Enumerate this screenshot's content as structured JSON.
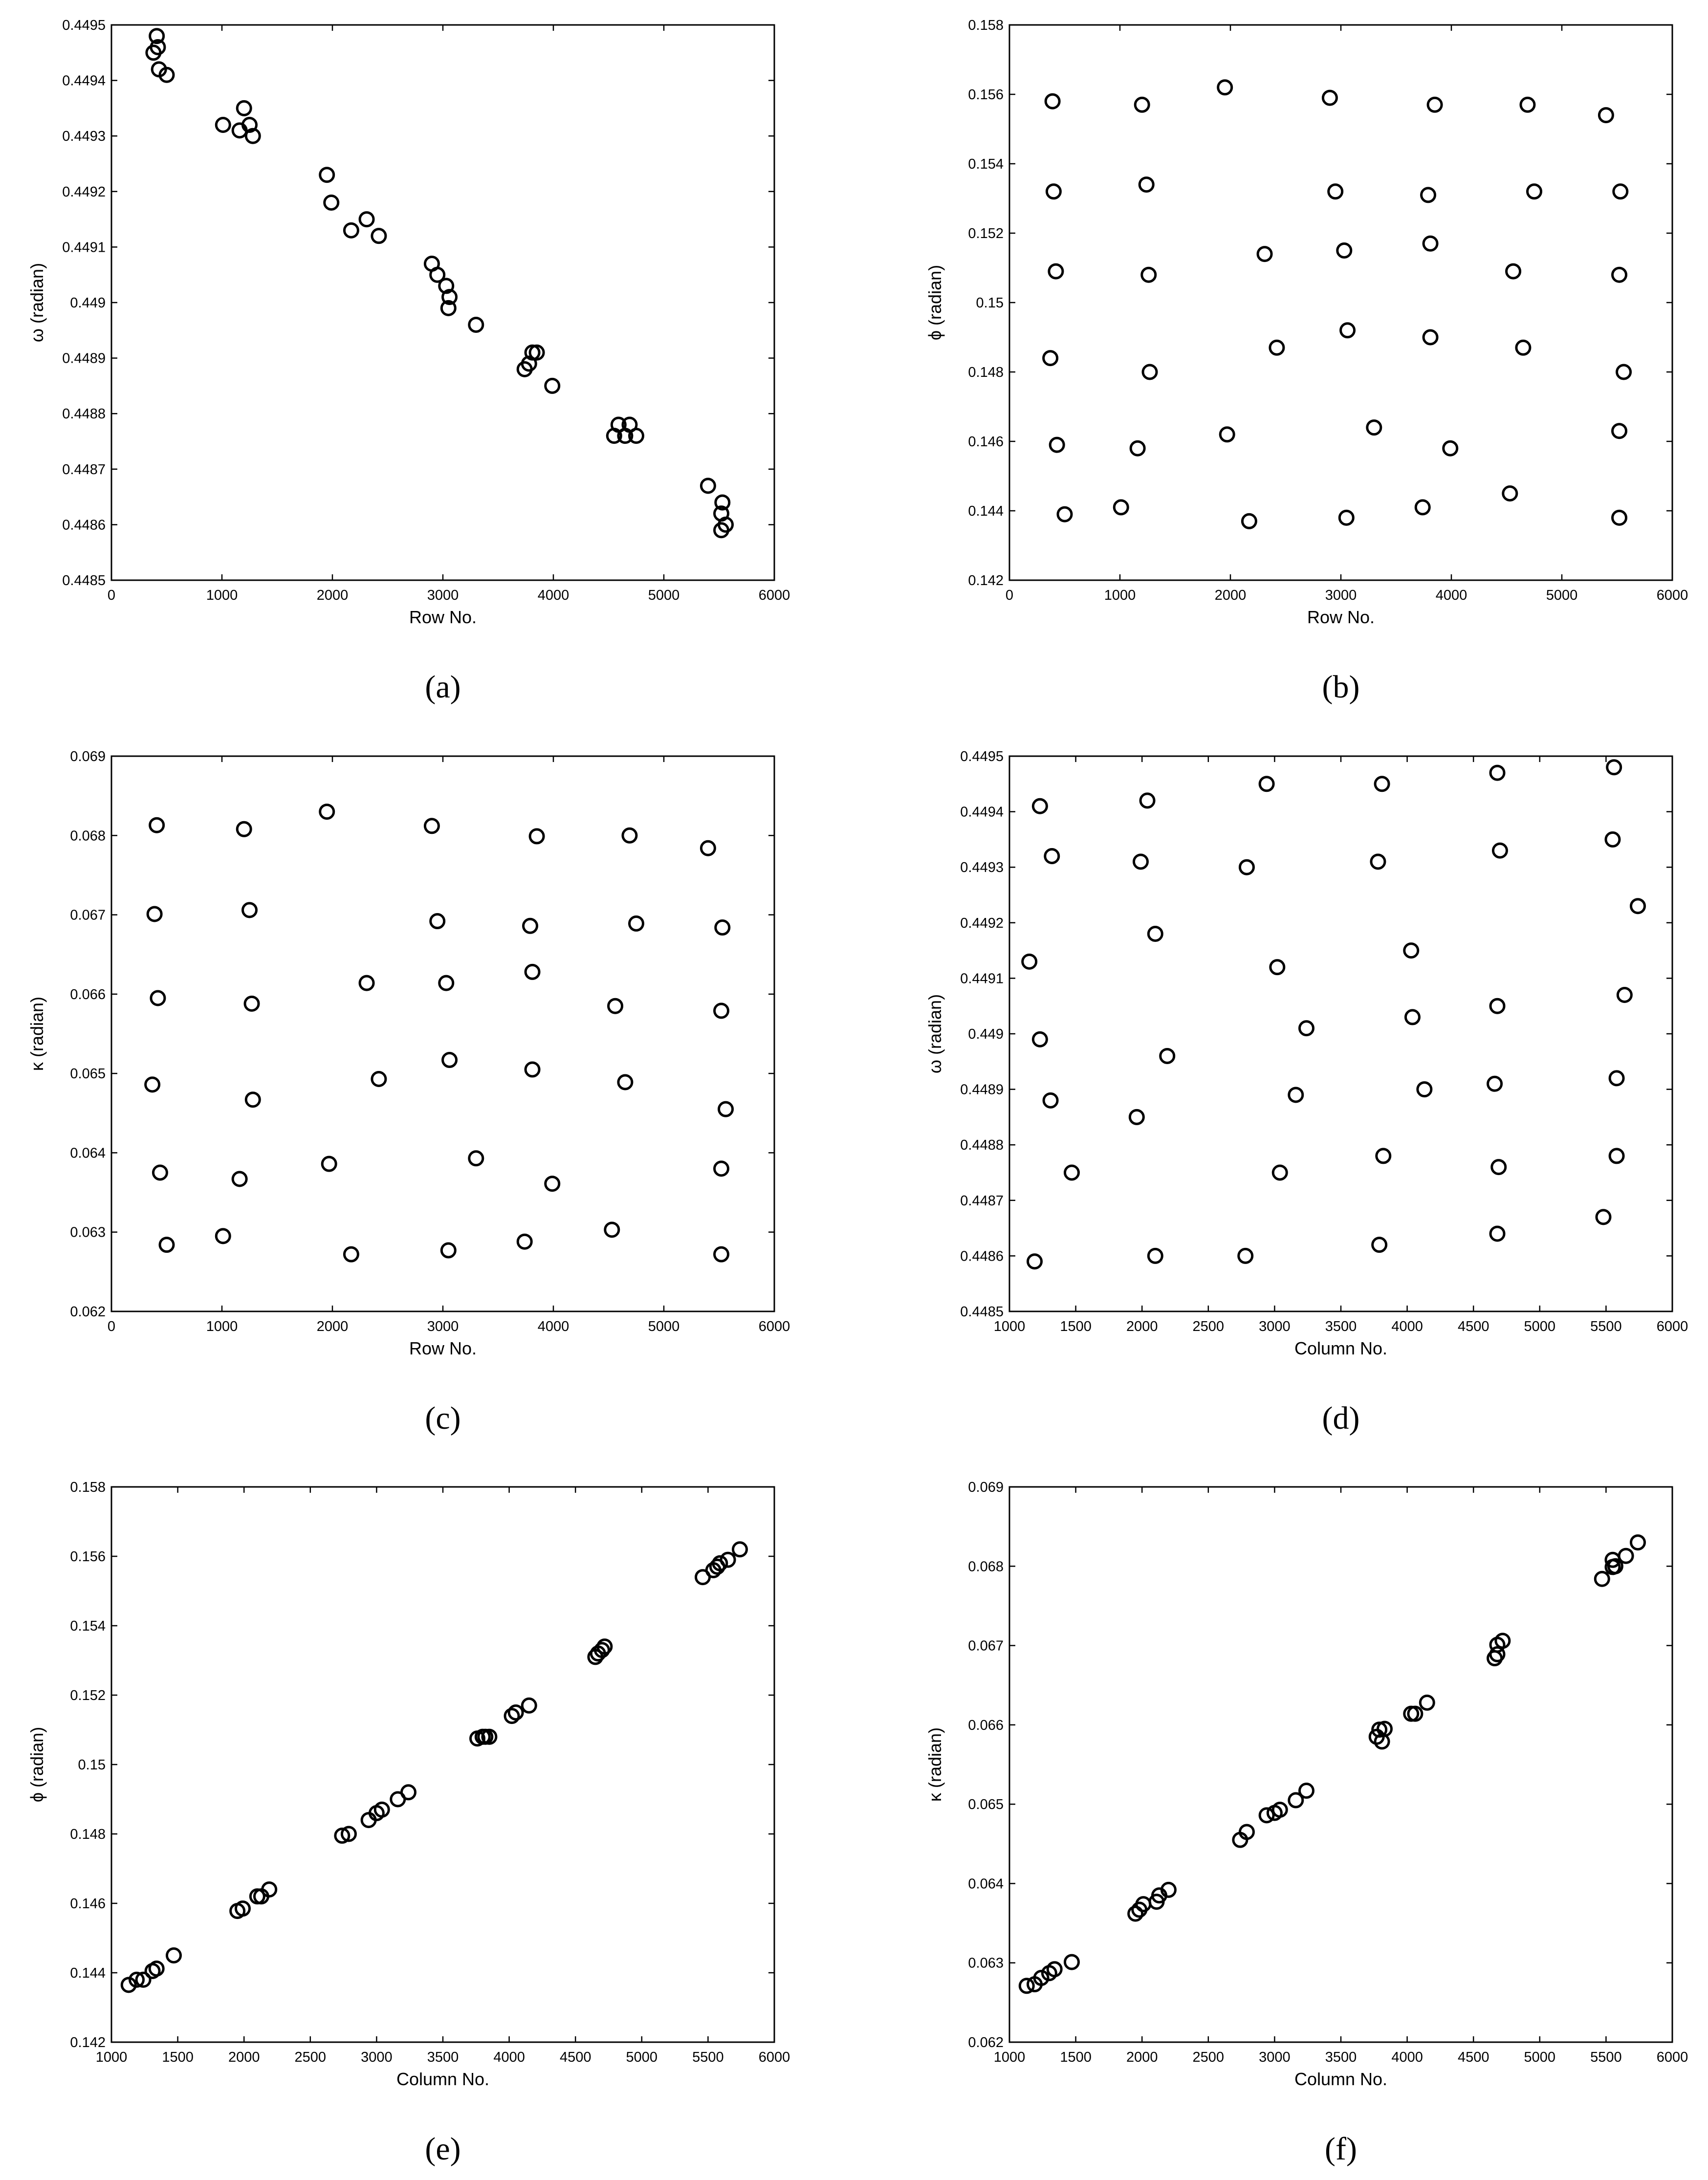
{
  "figure": {
    "marker_color": "#000000",
    "background": "#ffffff"
  },
  "chart_data": [
    {
      "id": "a",
      "type": "scatter",
      "caption": "(a)",
      "xlabel": "Row No.",
      "ylabel": "ω (radian)",
      "xlim": [
        0,
        6000
      ],
      "ylim": [
        0.4485,
        0.4495
      ],
      "xticks": [
        0,
        1000,
        2000,
        3000,
        4000,
        5000,
        6000
      ],
      "xtick_labels": [
        "0",
        "1000",
        "2000",
        "3000",
        "4000",
        "5000",
        "6000"
      ],
      "yticks": [
        0.4485,
        0.4486,
        0.4487,
        0.4488,
        0.4489,
        0.449,
        0.4491,
        0.4492,
        0.4493,
        0.4494,
        0.4495
      ],
      "ytick_labels": [
        "0.4485",
        "0.4486",
        "0.4487",
        "0.4488",
        "0.4489",
        "0.449",
        "0.4491",
        "0.4492",
        "0.4493",
        "0.4494",
        "0.4495"
      ],
      "points": [
        [
          410,
          0.44948
        ],
        [
          380,
          0.44945
        ],
        [
          420,
          0.44946
        ],
        [
          430,
          0.44942
        ],
        [
          500,
          0.44941
        ],
        [
          1010,
          0.44932
        ],
        [
          1200,
          0.44935
        ],
        [
          1160,
          0.44931
        ],
        [
          1250,
          0.44932
        ],
        [
          1280,
          0.4493
        ],
        [
          1950,
          0.44923
        ],
        [
          1990,
          0.44918
        ],
        [
          2170,
          0.44913
        ],
        [
          2310,
          0.44915
        ],
        [
          2420,
          0.44912
        ],
        [
          2900,
          0.44907
        ],
        [
          2950,
          0.44905
        ],
        [
          3030,
          0.44903
        ],
        [
          3060,
          0.44901
        ],
        [
          3050,
          0.44899
        ],
        [
          3300,
          0.44896
        ],
        [
          3740,
          0.44888
        ],
        [
          3810,
          0.44891
        ],
        [
          3780,
          0.44889
        ],
        [
          3850,
          0.44891
        ],
        [
          3990,
          0.44885
        ],
        [
          4550,
          0.44876
        ],
        [
          4590,
          0.44878
        ],
        [
          4650,
          0.44876
        ],
        [
          4690,
          0.44878
        ],
        [
          4750,
          0.44876
        ],
        [
          5400,
          0.44867
        ],
        [
          5530,
          0.44864
        ],
        [
          5520,
          0.44862
        ],
        [
          5560,
          0.4486
        ],
        [
          5520,
          0.44859
        ]
      ]
    },
    {
      "id": "b",
      "type": "scatter",
      "caption": "(b)",
      "xlabel": "Row No.",
      "ylabel": "ϕ (radian)",
      "xlim": [
        0,
        6000
      ],
      "ylim": [
        0.142,
        0.158
      ],
      "xticks": [
        0,
        1000,
        2000,
        3000,
        4000,
        5000,
        6000
      ],
      "xtick_labels": [
        "0",
        "1000",
        "2000",
        "3000",
        "4000",
        "5000",
        "6000"
      ],
      "yticks": [
        0.142,
        0.144,
        0.146,
        0.148,
        0.15,
        0.152,
        0.154,
        0.156,
        0.158
      ],
      "ytick_labels": [
        "0.142",
        "0.144",
        "0.146",
        "0.148",
        "0.15",
        "0.152",
        "0.154",
        "0.156",
        "0.158"
      ],
      "points": [
        [
          390,
          0.1558
        ],
        [
          1200,
          0.1557
        ],
        [
          1950,
          0.1562
        ],
        [
          2900,
          0.1559
        ],
        [
          3850,
          0.1557
        ],
        [
          4690,
          0.1557
        ],
        [
          5400,
          0.1554
        ],
        [
          400,
          0.1532
        ],
        [
          1240,
          0.1534
        ],
        [
          2950,
          0.1532
        ],
        [
          3790,
          0.1531
        ],
        [
          4750,
          0.1532
        ],
        [
          5530,
          0.1532
        ],
        [
          420,
          0.1509
        ],
        [
          1260,
          0.1508
        ],
        [
          2310,
          0.1514
        ],
        [
          3030,
          0.1515
        ],
        [
          3810,
          0.1517
        ],
        [
          4560,
          0.1509
        ],
        [
          5520,
          0.1508
        ],
        [
          370,
          0.1484
        ],
        [
          1270,
          0.148
        ],
        [
          2420,
          0.1487
        ],
        [
          3060,
          0.1492
        ],
        [
          3810,
          0.149
        ],
        [
          4650,
          0.1487
        ],
        [
          5560,
          0.148
        ],
        [
          430,
          0.1459
        ],
        [
          1160,
          0.1458
        ],
        [
          1970,
          0.1462
        ],
        [
          3300,
          0.1464
        ],
        [
          3990,
          0.1458
        ],
        [
          5520,
          0.1463
        ],
        [
          500,
          0.1439
        ],
        [
          1010,
          0.1441
        ],
        [
          2170,
          0.1437
        ],
        [
          3050,
          0.1438
        ],
        [
          3740,
          0.1441
        ],
        [
          4530,
          0.1445
        ],
        [
          5520,
          0.1438
        ]
      ]
    },
    {
      "id": "c",
      "type": "scatter",
      "caption": "(c)",
      "xlabel": "Row No.",
      "ylabel": "κ (radian)",
      "xlim": [
        0,
        6000
      ],
      "ylim": [
        0.062,
        0.069
      ],
      "xticks": [
        0,
        1000,
        2000,
        3000,
        4000,
        5000,
        6000
      ],
      "xtick_labels": [
        "0",
        "1000",
        "2000",
        "3000",
        "4000",
        "5000",
        "6000"
      ],
      "yticks": [
        0.062,
        0.063,
        0.064,
        0.065,
        0.066,
        0.067,
        0.068,
        0.069
      ],
      "ytick_labels": [
        "0.062",
        "0.063",
        "0.064",
        "0.065",
        "0.066",
        "0.067",
        "0.068",
        "0.069"
      ],
      "points": [
        [
          410,
          0.06813
        ],
        [
          1200,
          0.06808
        ],
        [
          1950,
          0.0683
        ],
        [
          2900,
          0.06812
        ],
        [
          3850,
          0.06799
        ],
        [
          4690,
          0.068
        ],
        [
          5400,
          0.06784
        ],
        [
          390,
          0.06701
        ],
        [
          1250,
          0.06706
        ],
        [
          2950,
          0.06692
        ],
        [
          3790,
          0.06686
        ],
        [
          4750,
          0.06689
        ],
        [
          5530,
          0.06684
        ],
        [
          420,
          0.06595
        ],
        [
          1270,
          0.06588
        ],
        [
          2310,
          0.06614
        ],
        [
          3030,
          0.06614
        ],
        [
          3810,
          0.06628
        ],
        [
          4560,
          0.06585
        ],
        [
          5520,
          0.06579
        ],
        [
          370,
          0.06486
        ],
        [
          1280,
          0.06467
        ],
        [
          2420,
          0.06493
        ],
        [
          3060,
          0.06517
        ],
        [
          3810,
          0.06505
        ],
        [
          4650,
          0.06489
        ],
        [
          5560,
          0.06455
        ],
        [
          440,
          0.06375
        ],
        [
          1160,
          0.06367
        ],
        [
          1970,
          0.06386
        ],
        [
          3300,
          0.06393
        ],
        [
          3990,
          0.06361
        ],
        [
          5520,
          0.0638
        ],
        [
          500,
          0.06284
        ],
        [
          1010,
          0.06295
        ],
        [
          2170,
          0.06272
        ],
        [
          3050,
          0.06277
        ],
        [
          3740,
          0.06288
        ],
        [
          4530,
          0.06303
        ],
        [
          5520,
          0.06272
        ]
      ]
    },
    {
      "id": "d",
      "type": "scatter",
      "caption": "(d)",
      "xlabel": "Column No.",
      "ylabel": "ω (radian)",
      "xlim": [
        1000,
        6000
      ],
      "ylim": [
        0.4485,
        0.4495
      ],
      "xticks": [
        1000,
        1500,
        2000,
        2500,
        3000,
        3500,
        4000,
        4500,
        5000,
        5500,
        6000
      ],
      "xtick_labels": [
        "1000",
        "1500",
        "2000",
        "2500",
        "3000",
        "3500",
        "4000",
        "4500",
        "5000",
        "5500",
        "6000"
      ],
      "yticks": [
        0.4485,
        0.4486,
        0.4487,
        0.4488,
        0.4489,
        0.449,
        0.4491,
        0.4492,
        0.4493,
        0.4494,
        0.4495
      ],
      "ytick_labels": [
        "0.4485",
        "0.4486",
        "0.4487",
        "0.4488",
        "0.4489",
        "0.449",
        "0.4491",
        "0.4492",
        "0.4493",
        "0.4494",
        "0.4495"
      ],
      "points": [
        [
          5560,
          0.44948
        ],
        [
          4680,
          0.44947
        ],
        [
          3810,
          0.44945
        ],
        [
          2940,
          0.44945
        ],
        [
          2040,
          0.44942
        ],
        [
          1230,
          0.44941
        ],
        [
          5550,
          0.44935
        ],
        [
          4700,
          0.44933
        ],
        [
          1320,
          0.44932
        ],
        [
          1990,
          0.44931
        ],
        [
          3780,
          0.44931
        ],
        [
          2790,
          0.4493
        ],
        [
          5740,
          0.44923
        ],
        [
          2100,
          0.44918
        ],
        [
          4030,
          0.44915
        ],
        [
          1150,
          0.44913
        ],
        [
          3020,
          0.44912
        ],
        [
          5640,
          0.44907
        ],
        [
          4680,
          0.44905
        ],
        [
          4040,
          0.44903
        ],
        [
          3240,
          0.44901
        ],
        [
          1230,
          0.44899
        ],
        [
          2190,
          0.44896
        ],
        [
          4130,
          0.4489
        ],
        [
          5580,
          0.44892
        ],
        [
          4660,
          0.44891
        ],
        [
          3160,
          0.44889
        ],
        [
          1310,
          0.44888
        ],
        [
          1960,
          0.44885
        ],
        [
          3820,
          0.44878
        ],
        [
          5580,
          0.44878
        ],
        [
          4690,
          0.44876
        ],
        [
          1470,
          0.44875
        ],
        [
          3040,
          0.44875
        ],
        [
          5480,
          0.44867
        ],
        [
          4680,
          0.44864
        ],
        [
          3790,
          0.44862
        ],
        [
          2100,
          0.4486
        ],
        [
          2780,
          0.4486
        ],
        [
          1190,
          0.44859
        ]
      ]
    },
    {
      "id": "e",
      "type": "scatter",
      "caption": "(e)",
      "xlabel": "Column No.",
      "ylabel": "ϕ (radian)",
      "xlim": [
        1000,
        6000
      ],
      "ylim": [
        0.142,
        0.158
      ],
      "xticks": [
        1000,
        1500,
        2000,
        2500,
        3000,
        3500,
        4000,
        4500,
        5000,
        5500,
        6000
      ],
      "xtick_labels": [
        "1000",
        "1500",
        "2000",
        "2500",
        "3000",
        "3500",
        "4000",
        "4500",
        "5000",
        "5500",
        "6000"
      ],
      "yticks": [
        0.142,
        0.144,
        0.146,
        0.148,
        0.15,
        0.152,
        0.154,
        0.156,
        0.158
      ],
      "ytick_labels": [
        "0.142",
        "0.144",
        "0.146",
        "0.148",
        "0.15",
        "0.152",
        "0.154",
        "0.156",
        "0.158"
      ],
      "points": [
        [
          1130,
          0.14365
        ],
        [
          1190,
          0.1438
        ],
        [
          1240,
          0.1438
        ],
        [
          1310,
          0.14405
        ],
        [
          1340,
          0.14412
        ],
        [
          1470,
          0.1445
        ],
        [
          1950,
          0.14578
        ],
        [
          1990,
          0.14585
        ],
        [
          2100,
          0.1462
        ],
        [
          2130,
          0.1462
        ],
        [
          2190,
          0.1464
        ],
        [
          2740,
          0.14795
        ],
        [
          2790,
          0.148
        ],
        [
          2940,
          0.1484
        ],
        [
          3000,
          0.1486
        ],
        [
          3040,
          0.1487
        ],
        [
          3160,
          0.149
        ],
        [
          3240,
          0.1492
        ],
        [
          3760,
          0.15075
        ],
        [
          3800,
          0.1508
        ],
        [
          3820,
          0.1508
        ],
        [
          3850,
          0.1508
        ],
        [
          4020,
          0.1514
        ],
        [
          4050,
          0.1515
        ],
        [
          4150,
          0.1517
        ],
        [
          4650,
          0.1531
        ],
        [
          4670,
          0.1532
        ],
        [
          4700,
          0.1533
        ],
        [
          4720,
          0.1534
        ],
        [
          5460,
          0.1554
        ],
        [
          5540,
          0.1556
        ],
        [
          5570,
          0.1557
        ],
        [
          5590,
          0.1558
        ],
        [
          5650,
          0.1559
        ],
        [
          5740,
          0.1562
        ]
      ]
    },
    {
      "id": "f",
      "type": "scatter",
      "caption": "(f)",
      "xlabel": "Column No.",
      "ylabel": "κ (radian)",
      "xlim": [
        1000,
        6000
      ],
      "ylim": [
        0.062,
        0.069
      ],
      "xticks": [
        1000,
        1500,
        2000,
        2500,
        3000,
        3500,
        4000,
        4500,
        5000,
        5500,
        6000
      ],
      "xtick_labels": [
        "1000",
        "1500",
        "2000",
        "2500",
        "3000",
        "3500",
        "4000",
        "4500",
        "5000",
        "5500",
        "6000"
      ],
      "yticks": [
        0.062,
        0.063,
        0.064,
        0.065,
        0.066,
        0.067,
        0.068,
        0.069
      ],
      "ytick_labels": [
        "0.062",
        "0.063",
        "0.064",
        "0.065",
        "0.066",
        "0.067",
        "0.068",
        "0.069"
      ],
      "points": [
        [
          1130,
          0.06271
        ],
        [
          1190,
          0.06273
        ],
        [
          1240,
          0.06281
        ],
        [
          1300,
          0.06287
        ],
        [
          1340,
          0.06292
        ],
        [
          1470,
          0.06301
        ],
        [
          1950,
          0.06362
        ],
        [
          1980,
          0.06367
        ],
        [
          2010,
          0.06374
        ],
        [
          2110,
          0.06377
        ],
        [
          2130,
          0.06385
        ],
        [
          2200,
          0.06392
        ],
        [
          2740,
          0.06455
        ],
        [
          2790,
          0.06465
        ],
        [
          2940,
          0.06486
        ],
        [
          3000,
          0.06489
        ],
        [
          3040,
          0.06493
        ],
        [
          3160,
          0.06505
        ],
        [
          3240,
          0.06517
        ],
        [
          3770,
          0.06585
        ],
        [
          3790,
          0.06594
        ],
        [
          3810,
          0.06579
        ],
        [
          3830,
          0.06595
        ],
        [
          4030,
          0.06614
        ],
        [
          4060,
          0.06614
        ],
        [
          4150,
          0.06628
        ],
        [
          4660,
          0.06684
        ],
        [
          4680,
          0.06689
        ],
        [
          4680,
          0.06701
        ],
        [
          4720,
          0.06706
        ],
        [
          5470,
          0.06784
        ],
        [
          5550,
          0.06799
        ],
        [
          5570,
          0.068
        ],
        [
          5550,
          0.06808
        ],
        [
          5650,
          0.06813
        ],
        [
          5740,
          0.0683
        ]
      ]
    }
  ]
}
